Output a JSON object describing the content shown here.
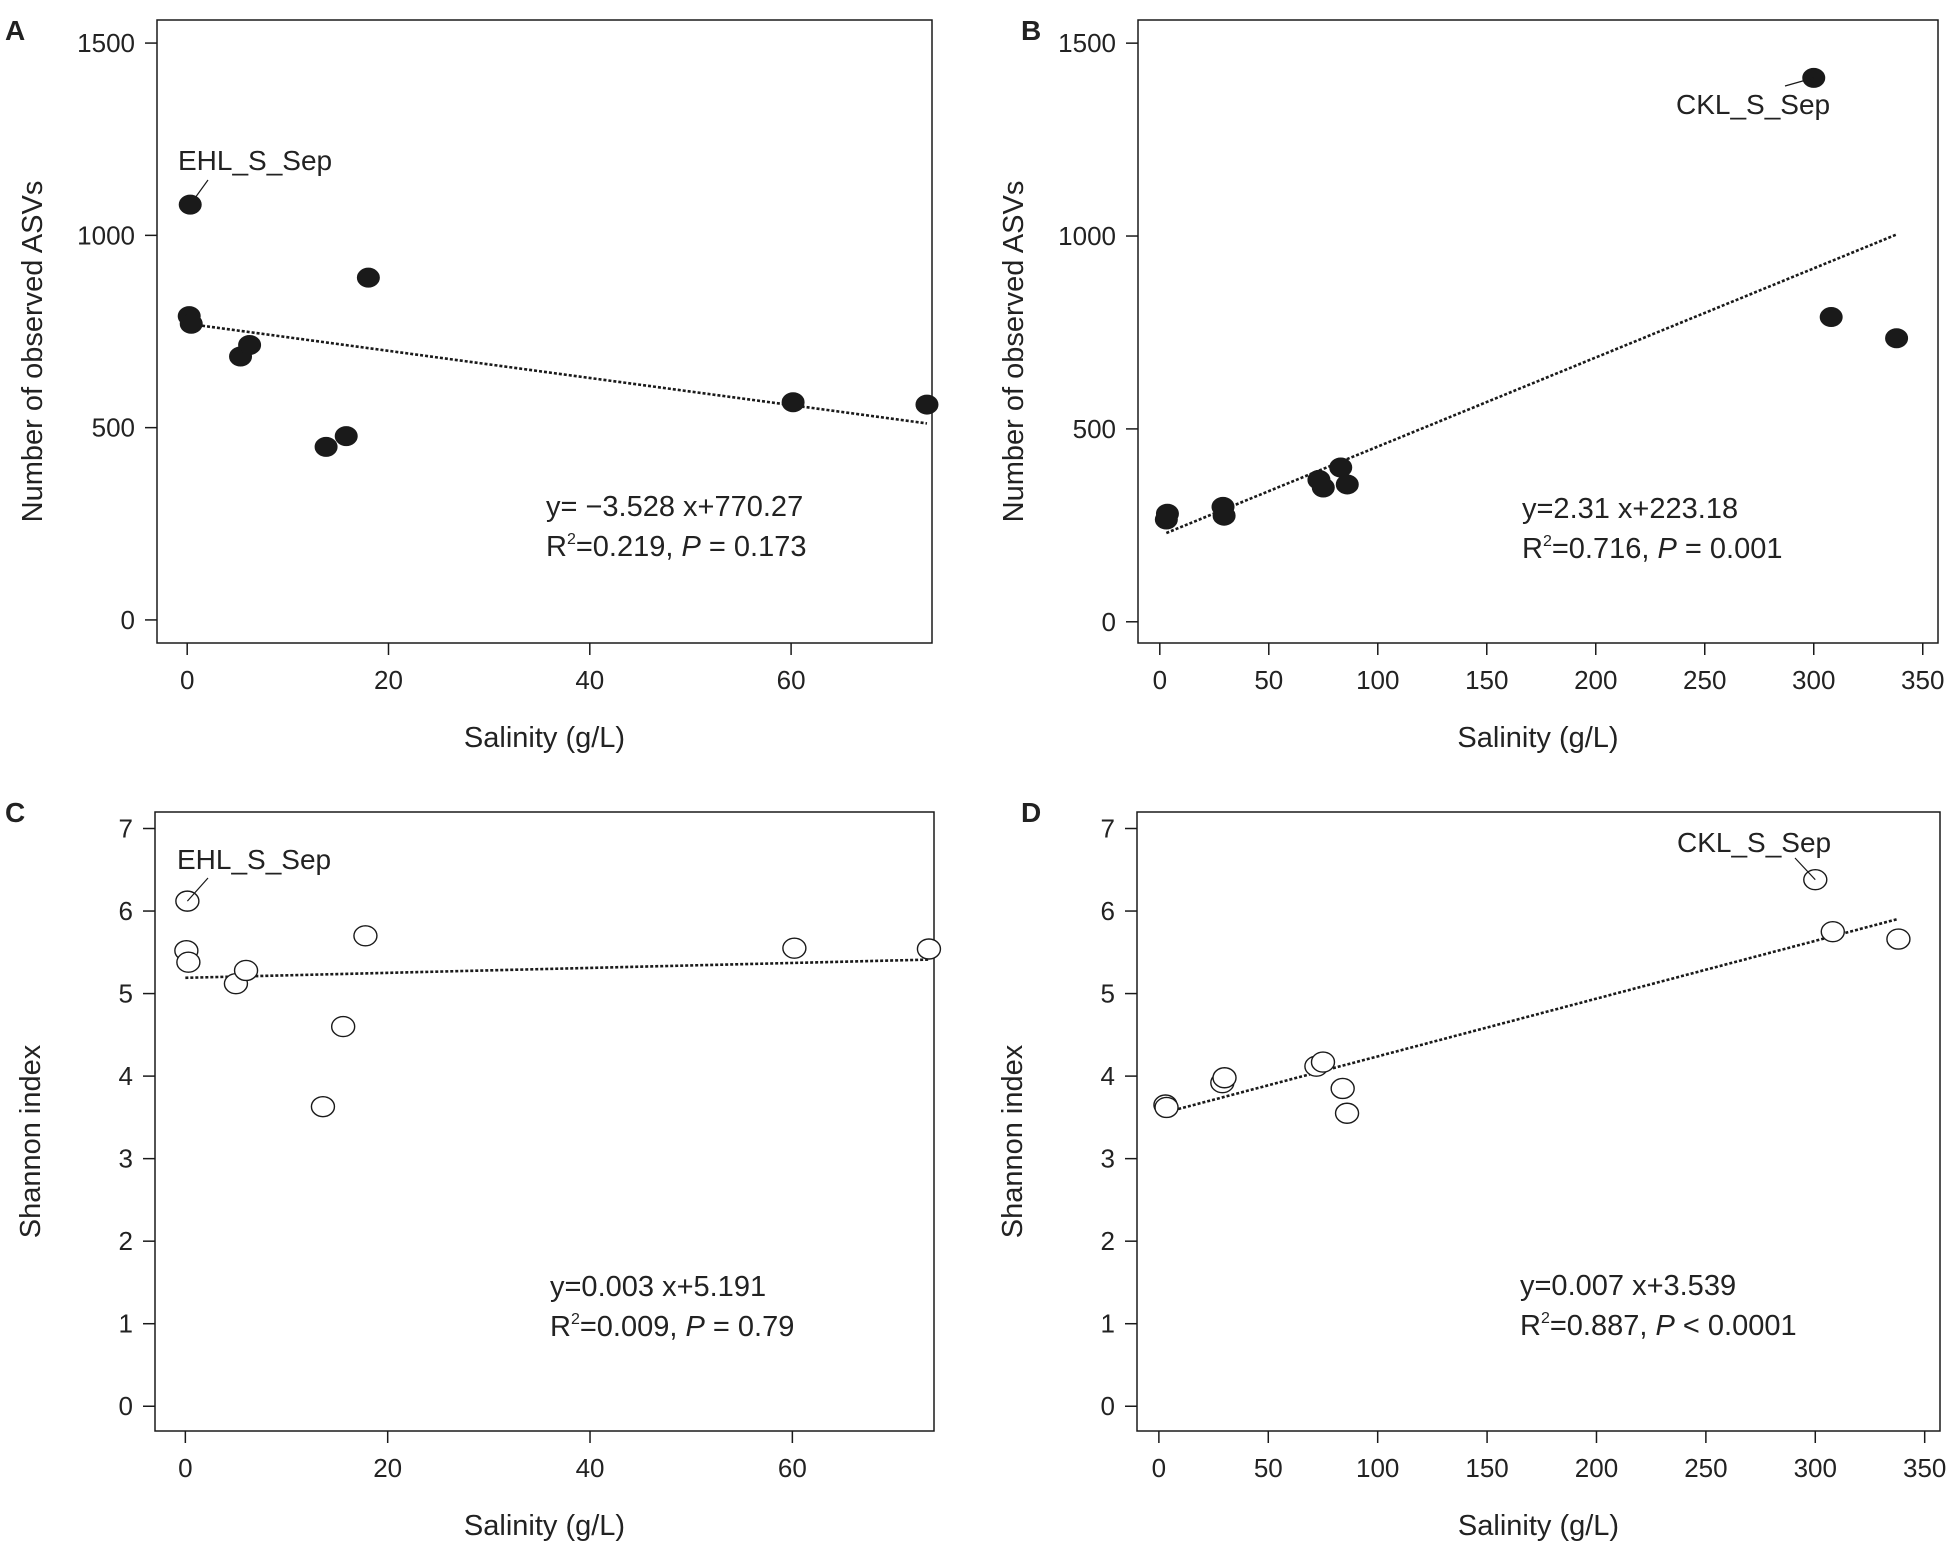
{
  "figure": {
    "colors": {
      "ink": "#1a1a1a",
      "background": "#ffffff"
    }
  },
  "chart_data": [
    {
      "panel_label": "A",
      "type": "scatter",
      "marker": "filled",
      "xlabel": "Salinity (g/L)",
      "ylabel": "Number of observed ASVs",
      "xlim": [
        -3,
        74
      ],
      "ylim": [
        -60,
        1560
      ],
      "xticks": [
        0,
        20,
        40,
        60
      ],
      "yticks": [
        0,
        500,
        1000,
        1500
      ],
      "points": [
        {
          "x": 0.3,
          "y": 1080
        },
        {
          "x": 0.2,
          "y": 790
        },
        {
          "x": 0.4,
          "y": 770
        },
        {
          "x": 5.3,
          "y": 685
        },
        {
          "x": 6.2,
          "y": 715
        },
        {
          "x": 13.8,
          "y": 450
        },
        {
          "x": 15.8,
          "y": 478
        },
        {
          "x": 18.0,
          "y": 890
        },
        {
          "x": 60.2,
          "y": 566
        },
        {
          "x": 73.5,
          "y": 560
        }
      ],
      "regression": {
        "slope": -3.528,
        "intercept": 770.27,
        "x_range": [
          0,
          73.5
        ]
      },
      "annotation": {
        "text": "EHL_S_Sep",
        "x": 0.3,
        "y": 1080
      },
      "equation_line1": "y= −3.528 x+770.27",
      "stats_r2": "=0.219, ",
      "stats_p": " = 0.173"
    },
    {
      "panel_label": "B",
      "type": "scatter",
      "marker": "filled",
      "xlabel": "Salinity (g/L)",
      "ylabel": "Number of observed ASVs",
      "xlim": [
        -10,
        357
      ],
      "ylim": [
        -55,
        1560
      ],
      "xticks": [
        0,
        50,
        100,
        150,
        200,
        250,
        300,
        350
      ],
      "yticks": [
        0,
        500,
        1000,
        1500
      ],
      "points": [
        {
          "x": 3,
          "y": 265
        },
        {
          "x": 3.5,
          "y": 280
        },
        {
          "x": 29,
          "y": 298
        },
        {
          "x": 29.5,
          "y": 275
        },
        {
          "x": 73,
          "y": 368
        },
        {
          "x": 75,
          "y": 348
        },
        {
          "x": 83,
          "y": 400
        },
        {
          "x": 86,
          "y": 356
        },
        {
          "x": 300,
          "y": 1410
        },
        {
          "x": 308,
          "y": 790
        },
        {
          "x": 338,
          "y": 735
        }
      ],
      "regression": {
        "slope": 2.31,
        "intercept": 223.18,
        "x_range": [
          3,
          338
        ]
      },
      "annotation": {
        "text": "CKL_S_Sep",
        "x": 300,
        "y": 1410
      },
      "equation_line1": "y=2.31 x+223.18",
      "stats_r2": "=0.716, ",
      "stats_p": " = 0.001"
    },
    {
      "panel_label": "C",
      "type": "scatter",
      "marker": "open",
      "xlabel": "Salinity (g/L)",
      "ylabel": "Shannon index",
      "xlim": [
        -3,
        74
      ],
      "ylim": [
        -0.3,
        7.2
      ],
      "xticks": [
        0,
        20,
        40,
        60
      ],
      "yticks": [
        0,
        1,
        2,
        3,
        4,
        5,
        6,
        7
      ],
      "points": [
        {
          "x": 0.2,
          "y": 6.12
        },
        {
          "x": 0.1,
          "y": 5.52
        },
        {
          "x": 0.3,
          "y": 5.38
        },
        {
          "x": 5.0,
          "y": 5.12
        },
        {
          "x": 6.0,
          "y": 5.28
        },
        {
          "x": 13.6,
          "y": 3.63
        },
        {
          "x": 15.6,
          "y": 4.6
        },
        {
          "x": 17.8,
          "y": 5.7
        },
        {
          "x": 60.2,
          "y": 5.55
        },
        {
          "x": 73.5,
          "y": 5.54
        }
      ],
      "regression": {
        "slope": 0.003,
        "intercept": 5.191,
        "x_range": [
          0,
          73.5
        ]
      },
      "annotation": {
        "text": "EHL_S_Sep",
        "x": 0.2,
        "y": 6.12
      },
      "equation_line1": "y=0.003 x+5.191",
      "stats_r2": "=0.009, ",
      "stats_p": " = 0.79"
    },
    {
      "panel_label": "D",
      "type": "scatter",
      "marker": "open",
      "xlabel": "Salinity (g/L)",
      "ylabel": "Shannon index",
      "xlim": [
        -10,
        357
      ],
      "ylim": [
        -0.3,
        7.2
      ],
      "xticks": [
        0,
        50,
        100,
        150,
        200,
        250,
        300,
        350
      ],
      "yticks": [
        0,
        1,
        2,
        3,
        4,
        5,
        6,
        7
      ],
      "points": [
        {
          "x": 3,
          "y": 3.65
        },
        {
          "x": 3.5,
          "y": 3.62
        },
        {
          "x": 29,
          "y": 3.92
        },
        {
          "x": 30,
          "y": 3.98
        },
        {
          "x": 72,
          "y": 4.12
        },
        {
          "x": 75,
          "y": 4.17
        },
        {
          "x": 84,
          "y": 3.85
        },
        {
          "x": 86,
          "y": 3.55
        },
        {
          "x": 300,
          "y": 6.38
        },
        {
          "x": 308,
          "y": 5.75
        },
        {
          "x": 338,
          "y": 5.66
        }
      ],
      "regression": {
        "slope": 0.007,
        "intercept": 3.539,
        "x_range": [
          0,
          338
        ]
      },
      "annotation": {
        "text": "CKL_S_Sep",
        "x": 300,
        "y": 6.38
      },
      "equation_line1": "y=0.007 x+3.539",
      "stats_r2": "=0.887, ",
      "stats_p": " < 0.0001"
    }
  ]
}
